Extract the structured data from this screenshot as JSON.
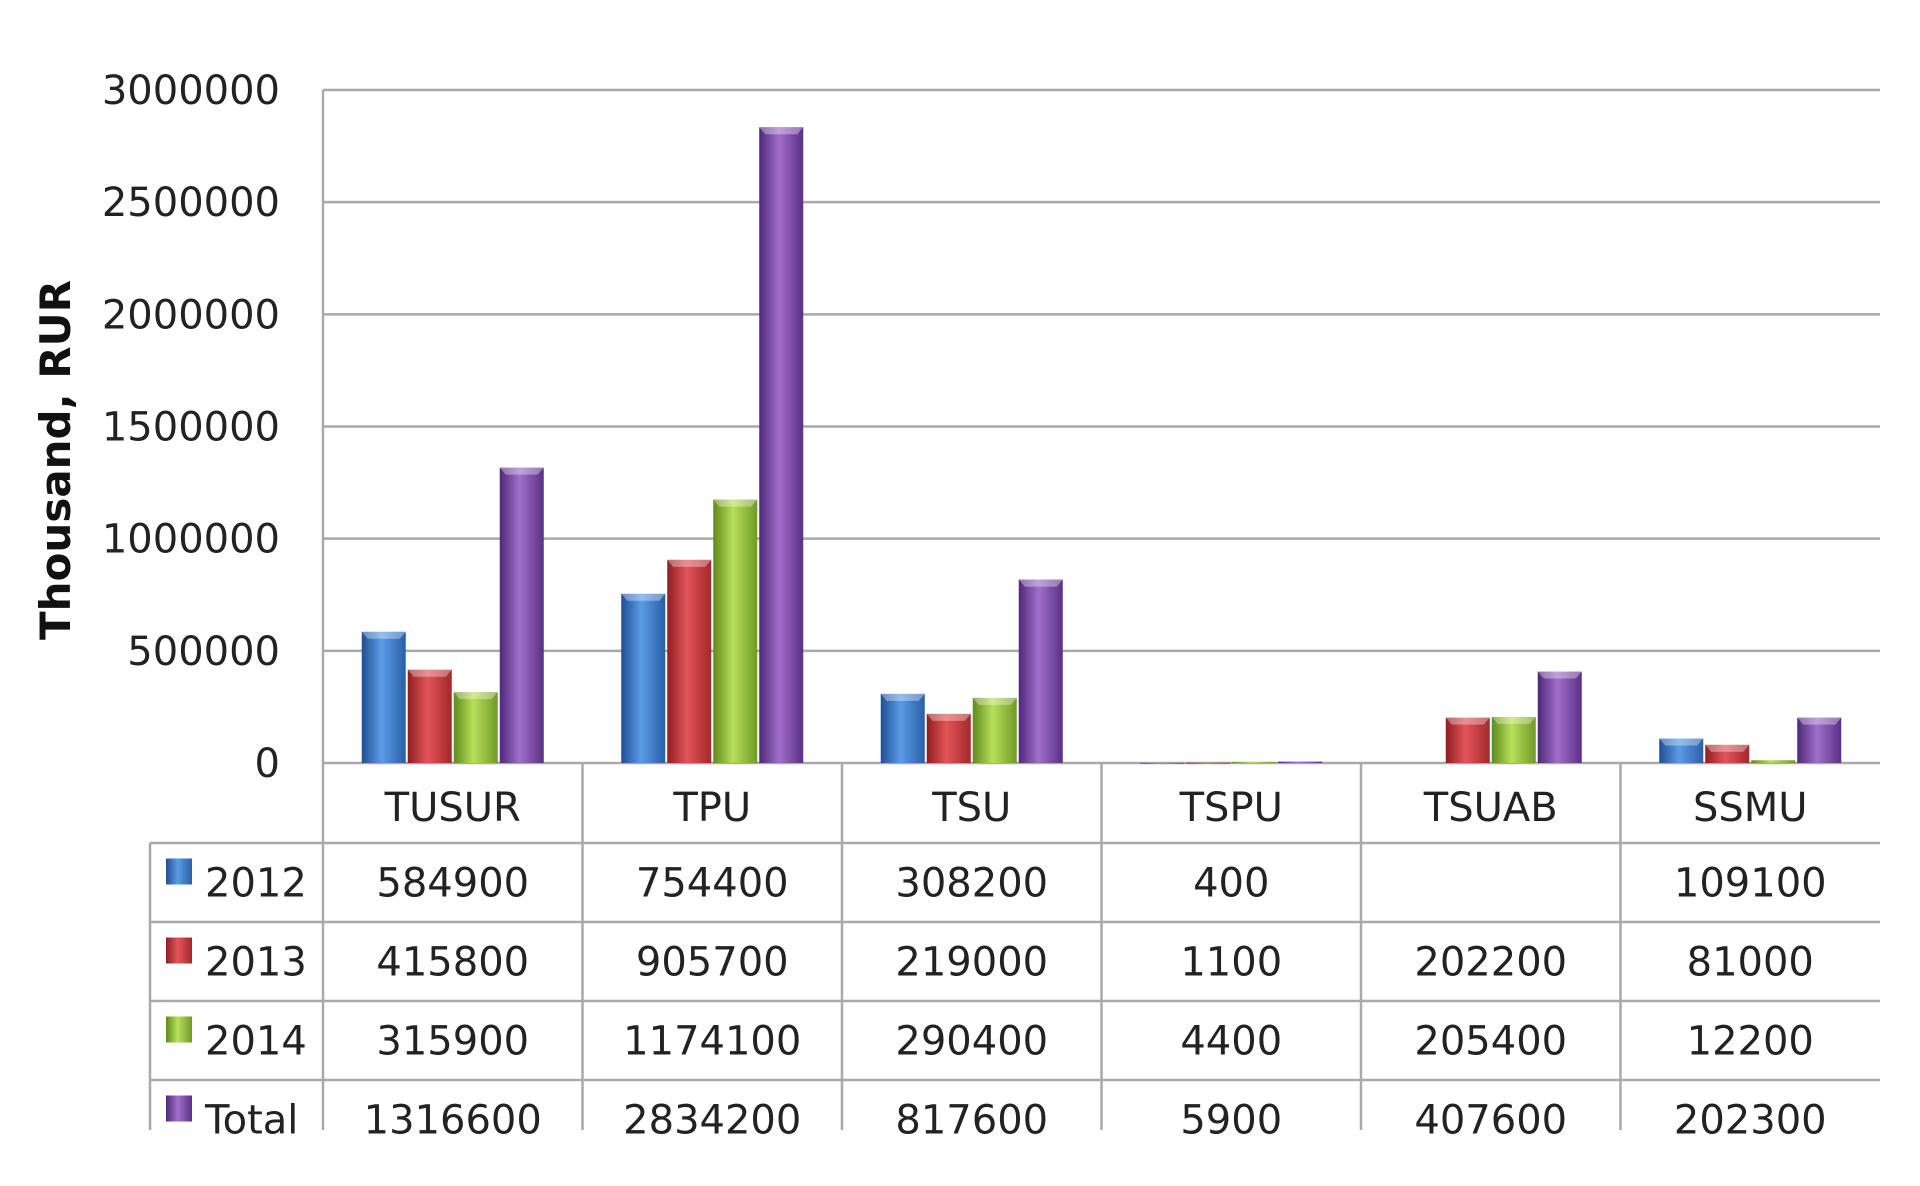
{
  "chart_data": {
    "type": "bar",
    "title": "",
    "xlabel": "",
    "ylabel": "Thousand, RUR",
    "ylim": [
      0,
      3000000
    ],
    "yticks": [
      0,
      500000,
      1000000,
      1500000,
      2000000,
      2500000,
      3000000
    ],
    "grid": true,
    "legend": "data-table",
    "categories": [
      "TUSUR",
      "TPU",
      "TSU",
      "TSPU",
      "TSUAB",
      "SSMU"
    ],
    "series": [
      {
        "name": "2012",
        "color": "#3a78c9",
        "values": [
          584900,
          754400,
          308200,
          400,
          null,
          109100
        ]
      },
      {
        "name": "2013",
        "color": "#c8393a",
        "values": [
          415800,
          905700,
          219000,
          1100,
          202200,
          81000
        ]
      },
      {
        "name": "2014",
        "color": "#97c03c",
        "values": [
          315900,
          1174100,
          290400,
          4400,
          205400,
          12200
        ]
      },
      {
        "name": "Total",
        "color": "#7c4aa6",
        "values": [
          1316600,
          2834200,
          817600,
          5900,
          407600,
          202300
        ]
      }
    ],
    "table_labels": [
      [
        "584900",
        "754400",
        "308200",
        "400",
        "",
        "109100"
      ],
      [
        "415800",
        "905700",
        "219000",
        "1100",
        "202200",
        "81000"
      ],
      [
        "315900",
        "1174100",
        "290400",
        "4400",
        "205400",
        "12200"
      ],
      [
        "1316600",
        "2834200",
        "817600",
        "5900",
        "407600",
        "202300"
      ]
    ]
  }
}
